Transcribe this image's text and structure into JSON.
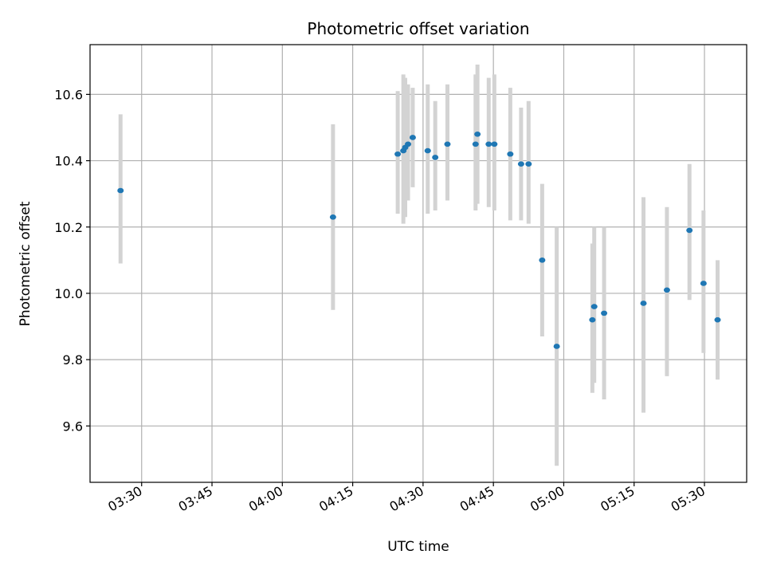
{
  "chart_data": {
    "type": "scatter",
    "title": "Photometric offset variation",
    "xlabel": "UTC time",
    "ylabel": "Photometric offset",
    "x_ticks": [
      "03:30",
      "03:45",
      "04:00",
      "04:15",
      "04:30",
      "04:45",
      "05:00",
      "05:15",
      "05:30"
    ],
    "y_ticks": [
      "9.6",
      "9.8",
      "10.0",
      "10.2",
      "10.4",
      "10.6"
    ],
    "xlim": [
      "03:19",
      "05:39"
    ],
    "ylim": [
      9.43,
      10.75
    ],
    "grid": true,
    "error_color": "#d3d3d3",
    "marker_color": "#1f77b4",
    "series": [
      {
        "points": [
          {
            "t": "03:25.5",
            "y": 10.31,
            "lo": 10.09,
            "hi": 10.54
          },
          {
            "t": "04:10.8",
            "y": 10.23,
            "lo": 9.95,
            "hi": 10.51
          },
          {
            "t": "04:24.6",
            "y": 10.42,
            "lo": 10.24,
            "hi": 10.61
          },
          {
            "t": "04:25.8",
            "y": 10.43,
            "lo": 10.21,
            "hi": 10.66
          },
          {
            "t": "04:26.2",
            "y": 10.44,
            "lo": 10.23,
            "hi": 10.65
          },
          {
            "t": "04:26.8",
            "y": 10.45,
            "lo": 10.28,
            "hi": 10.63
          },
          {
            "t": "04:27.8",
            "y": 10.47,
            "lo": 10.32,
            "hi": 10.62
          },
          {
            "t": "04:31.0",
            "y": 10.43,
            "lo": 10.24,
            "hi": 10.63
          },
          {
            "t": "04:32.6",
            "y": 10.41,
            "lo": 10.25,
            "hi": 10.58
          },
          {
            "t": "04:35.2",
            "y": 10.45,
            "lo": 10.28,
            "hi": 10.63
          },
          {
            "t": "04:41.2",
            "y": 10.45,
            "lo": 10.25,
            "hi": 10.66
          },
          {
            "t": "04:41.6",
            "y": 10.48,
            "lo": 10.27,
            "hi": 10.69
          },
          {
            "t": "04:44.0",
            "y": 10.45,
            "lo": 10.26,
            "hi": 10.65
          },
          {
            "t": "04:45.2",
            "y": 10.45,
            "lo": 10.25,
            "hi": 10.66
          },
          {
            "t": "04:48.6",
            "y": 10.42,
            "lo": 10.22,
            "hi": 10.62
          },
          {
            "t": "04:50.9",
            "y": 10.39,
            "lo": 10.22,
            "hi": 10.56
          },
          {
            "t": "04:52.5",
            "y": 10.39,
            "lo": 10.21,
            "hi": 10.58
          },
          {
            "t": "04:55.4",
            "y": 10.1,
            "lo": 9.87,
            "hi": 10.33
          },
          {
            "t": "04:58.5",
            "y": 9.84,
            "lo": 9.48,
            "hi": 10.2
          },
          {
            "t": "05:06.1",
            "y": 9.92,
            "lo": 9.7,
            "hi": 10.15
          },
          {
            "t": "05:06.5",
            "y": 9.96,
            "lo": 9.73,
            "hi": 10.2
          },
          {
            "t": "05:08.6",
            "y": 9.94,
            "lo": 9.68,
            "hi": 10.2
          },
          {
            "t": "05:17.0",
            "y": 9.97,
            "lo": 9.64,
            "hi": 10.29
          },
          {
            "t": "05:22.0",
            "y": 10.01,
            "lo": 9.75,
            "hi": 10.26
          },
          {
            "t": "05:26.8",
            "y": 10.19,
            "lo": 9.98,
            "hi": 10.39
          },
          {
            "t": "05:29.8",
            "y": 10.03,
            "lo": 9.82,
            "hi": 10.25
          },
          {
            "t": "05:32.8",
            "y": 9.92,
            "lo": 9.74,
            "hi": 10.1
          }
        ]
      }
    ]
  }
}
